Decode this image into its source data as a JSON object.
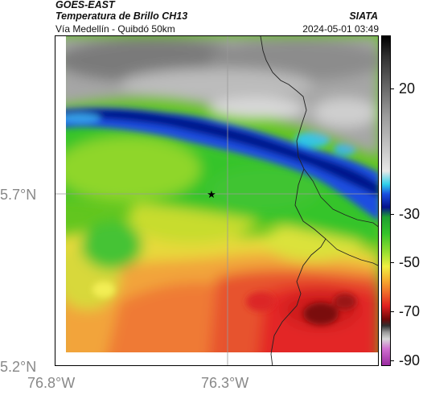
{
  "header": {
    "satellite": "GOES-EAST",
    "product": "Temperatura de Brillo CH13",
    "route": "Vía Medellín - Quibdó 50km",
    "agency": "SIATA",
    "timestamp": "2024-05-01 03:49"
  },
  "axes": {
    "lat_ticks": [
      "5.7°N",
      "5.2°N"
    ],
    "lon_ticks": [
      "76.8°W",
      "76.3°W"
    ]
  },
  "colorbar": {
    "labels": [
      "20",
      "-30",
      "-50",
      "-70",
      "-90"
    ],
    "values": [
      20,
      -30,
      -50,
      -70,
      -90
    ]
  },
  "map": {
    "marker": "star-icon"
  }
}
